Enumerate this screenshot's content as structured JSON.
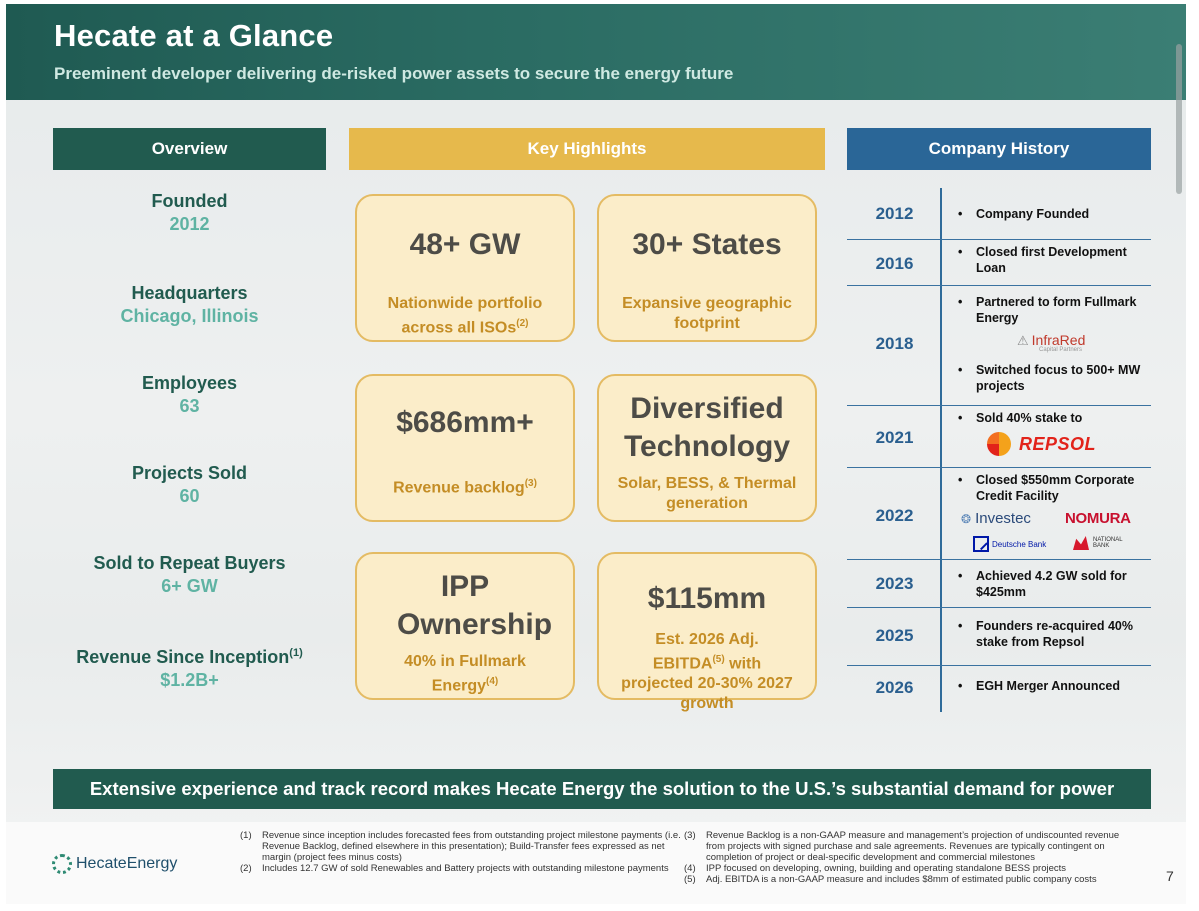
{
  "header": {
    "title": "Hecate at a Glance",
    "subtitle": "Preeminent developer delivering de-risked power assets to secure the energy future"
  },
  "columns": {
    "overview": "Overview",
    "highlights": "Key Highlights",
    "history": "Company History"
  },
  "overview": [
    {
      "label": "Founded",
      "value": "2012",
      "sup": ""
    },
    {
      "label": "Headquarters",
      "value": "Chicago, Illinois",
      "sup": ""
    },
    {
      "label": "Employees",
      "value": "63",
      "sup": ""
    },
    {
      "label": "Projects Sold",
      "value": "60",
      "sup": ""
    },
    {
      "label": "Sold to Repeat Buyers",
      "value": "6+ GW",
      "sup": ""
    },
    {
      "label": "Revenue Since Inception",
      "value": "$1.2B+",
      "sup": "(1)"
    }
  ],
  "highlights": [
    {
      "big": "48+ GW",
      "small": "Nationwide portfolio across all ISOs",
      "sup": "(2)"
    },
    {
      "big": "30+ States",
      "small": "Expansive geographic footprint",
      "sup": ""
    },
    {
      "big": "$686mm+",
      "small": "Revenue backlog",
      "sup": "(3)"
    },
    {
      "big": "Diversified Technology",
      "small": "Solar, BESS, & Thermal generation",
      "sup": ""
    },
    {
      "big": "IPP Ownership",
      "small": "40% in Fullmark Energy",
      "sup": "(4)"
    },
    {
      "big": "$115mm",
      "small": "Est. 2026 Adj. EBITDA with projected 20-30% 2027 growth",
      "sup": "(5)"
    }
  ],
  "history": [
    {
      "year": "2012",
      "events": [
        "Company Founded"
      ]
    },
    {
      "year": "2016",
      "events": [
        "Closed first Development Loan"
      ]
    },
    {
      "year": "2018",
      "events": [
        "Partnered to form Fullmark Energy",
        "Switched focus to 500+ MW projects"
      ]
    },
    {
      "year": "2021",
      "events": [
        "Sold 40% stake to"
      ]
    },
    {
      "year": "2022",
      "events": [
        "Closed $550mm Corporate Credit Facility"
      ]
    },
    {
      "year": "2023",
      "events": [
        "Achieved 4.2 GW sold for $425mm"
      ]
    },
    {
      "year": "2025",
      "events": [
        "Founders re-acquired 40% stake from Repsol"
      ]
    },
    {
      "year": "2026",
      "events": [
        "EGH Merger Announced"
      ]
    }
  ],
  "logos": {
    "infrared": "InfraRed",
    "infrared_sub": "Capital Partners",
    "repsol": "REPSOL",
    "investec": "Investec",
    "nomura": "NOMURA",
    "deutsche": "Deutsche Bank",
    "national_bank": "NATIONAL BANK"
  },
  "banner": "Extensive experience and track record makes Hecate Energy the solution to the U.S.’s substantial demand for power",
  "footer": {
    "brand": "HecateEnergy",
    "notes_left": [
      {
        "num": "(1)",
        "text": "Revenue since inception includes forecasted fees from outstanding project milestone payments (i.e. Revenue Backlog, defined elsewhere in this presentation); Build-Transfer fees expressed as net margin (project fees minus costs)"
      },
      {
        "num": "(2)",
        "text": "Includes 12.7 GW of sold Renewables and Battery projects with outstanding milestone payments"
      }
    ],
    "notes_right": [
      {
        "num": "(3)",
        "text": "Revenue Backlog is a non-GAAP measure and management’s projection of undiscounted revenue from projects with signed purchase and sale agreements. Revenues are typically contingent on completion of project or deal-specific development and commercial milestones"
      },
      {
        "num": "(4)",
        "text": "IPP focused on developing, owning, building and operating standalone BESS projects"
      },
      {
        "num": "(5)",
        "text": "Adj. EBITDA is a non-GAAP measure and includes $8mm of estimated public company costs"
      }
    ],
    "page": "7"
  }
}
